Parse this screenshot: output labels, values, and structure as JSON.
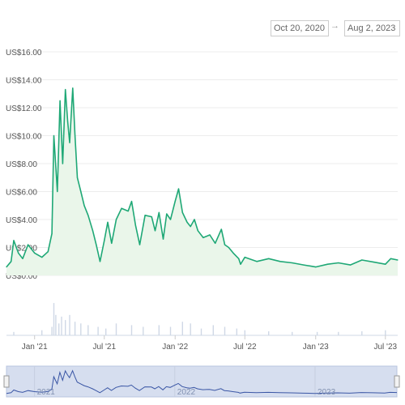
{
  "range_selector": {
    "from": "Oct 20, 2020",
    "to": "Aug 2, 2023",
    "arrow": "→"
  },
  "chart_data": {
    "type": "area",
    "y_ticks": [
      "US$0.00",
      "US$2.00",
      "US$4.00",
      "US$6.00",
      "US$8.00",
      "US$10.00",
      "US$12.00",
      "US$14.00",
      "US$16.00"
    ],
    "ylim": [
      0,
      16
    ],
    "x_ticks": [
      "Jan '21",
      "Jul '21",
      "Jan '22",
      "Jul '22",
      "Jan '23",
      "Jul '23"
    ],
    "x_tick_dates": [
      "2021-01-01",
      "2021-07-01",
      "2022-01-01",
      "2022-07-01",
      "2023-01-01",
      "2023-07-01"
    ],
    "xlim": [
      "2020-10-20",
      "2023-08-02"
    ],
    "grid": true,
    "colors": {
      "line": "#1fa876",
      "fill": "#eaf6ea",
      "volume": "#cfd8e6",
      "navigator_fill": "#d6deef",
      "navigator_line": "#3a56a5"
    },
    "series": [
      {
        "x": [
          "2020-10-20",
          "2020-11-01",
          "2020-11-08",
          "2020-11-20",
          "2020-12-01",
          "2020-12-15",
          "2021-01-01",
          "2021-01-20",
          "2021-02-05",
          "2021-02-15",
          "2021-02-20",
          "2021-03-01",
          "2021-03-08",
          "2021-03-15",
          "2021-03-22",
          "2021-03-28",
          "2021-04-02",
          "2021-04-10",
          "2021-04-16",
          "2021-04-22",
          "2021-05-01",
          "2021-05-10",
          "2021-05-20",
          "2021-06-01",
          "2021-06-10",
          "2021-06-20",
          "2021-07-01",
          "2021-07-10",
          "2021-07-20",
          "2021-08-01",
          "2021-08-15",
          "2021-09-01",
          "2021-09-10",
          "2021-09-20",
          "2021-10-01",
          "2021-10-15",
          "2021-11-01",
          "2021-11-10",
          "2021-11-20",
          "2021-12-01",
          "2021-12-10",
          "2021-12-20",
          "2022-01-01",
          "2022-01-10",
          "2022-01-20",
          "2022-02-01",
          "2022-02-10",
          "2022-02-20",
          "2022-03-01",
          "2022-03-15",
          "2022-04-01",
          "2022-04-15",
          "2022-05-01",
          "2022-05-10",
          "2022-05-20",
          "2022-06-01",
          "2022-06-15",
          "2022-06-20",
          "2022-07-01",
          "2022-08-01",
          "2022-09-01",
          "2022-10-01",
          "2022-11-01",
          "2022-12-01",
          "2023-01-01",
          "2023-02-01",
          "2023-03-01",
          "2023-04-01",
          "2023-05-01",
          "2023-06-01",
          "2023-07-01",
          "2023-07-15",
          "2023-08-02"
        ],
        "values": [
          0.6,
          1.0,
          2.5,
          1.6,
          1.2,
          2.2,
          1.6,
          1.3,
          1.7,
          3.0,
          10.0,
          6.0,
          12.5,
          8.0,
          13.3,
          11.0,
          9.5,
          13.4,
          10.0,
          7.0,
          6.0,
          5.0,
          4.3,
          3.2,
          2.2,
          1.0,
          2.5,
          3.8,
          2.3,
          4.0,
          4.8,
          4.6,
          5.3,
          3.6,
          2.2,
          4.3,
          4.2,
          3.2,
          4.5,
          2.6,
          4.4,
          4.0,
          5.3,
          6.2,
          4.5,
          3.8,
          3.5,
          4.0,
          3.2,
          2.7,
          2.9,
          2.3,
          3.3,
          2.2,
          2.0,
          1.6,
          1.2,
          0.8,
          1.3,
          1.0,
          1.2,
          1.0,
          0.9,
          0.75,
          0.6,
          0.8,
          0.9,
          0.75,
          1.1,
          0.95,
          0.8,
          1.2,
          1.1
        ]
      }
    ],
    "volume": {
      "x": [
        "2020-11-08",
        "2021-01-20",
        "2021-02-15",
        "2021-02-20",
        "2021-02-25",
        "2021-03-05",
        "2021-03-12",
        "2021-03-22",
        "2021-04-02",
        "2021-04-16",
        "2021-05-01",
        "2021-05-20",
        "2021-06-15",
        "2021-07-05",
        "2021-08-01",
        "2021-09-10",
        "2021-10-10",
        "2021-11-20",
        "2021-12-20",
        "2022-01-20",
        "2022-02-10",
        "2022-03-10",
        "2022-04-10",
        "2022-05-10",
        "2022-06-10",
        "2022-07-01",
        "2022-09-01",
        "2022-11-01",
        "2023-01-05",
        "2023-03-01",
        "2023-05-01",
        "2023-07-01"
      ],
      "relative": [
        0.1,
        0.15,
        0.25,
        0.95,
        0.6,
        0.35,
        0.55,
        0.45,
        0.6,
        0.4,
        0.35,
        0.3,
        0.25,
        0.2,
        0.35,
        0.3,
        0.25,
        0.3,
        0.25,
        0.4,
        0.35,
        0.2,
        0.3,
        0.25,
        0.2,
        0.15,
        0.12,
        0.1,
        0.1,
        0.1,
        0.12,
        0.15
      ]
    }
  },
  "navigator": {
    "labels": [
      "2021",
      "2022",
      "2023"
    ]
  }
}
